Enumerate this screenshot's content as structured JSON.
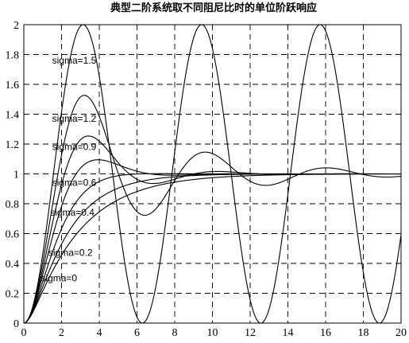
{
  "chart_data": {
    "type": "line",
    "title": "典型二阶系统取不同阻尼比时的单位阶跃响应",
    "xlabel": "",
    "ylabel": "",
    "xlim": [
      0,
      20
    ],
    "ylim": [
      0,
      2
    ],
    "grid": true,
    "x_ticks": [
      "0",
      "2",
      "4",
      "6",
      "8",
      "10",
      "12",
      "14",
      "16",
      "18",
      "20"
    ],
    "y_ticks": [
      "0",
      "0.2",
      "0.4",
      "0.6",
      "0.8",
      "1",
      "1.2",
      "1.4",
      "1.6",
      "1.8",
      "2"
    ],
    "system": {
      "natural_frequency": 1,
      "response": "unit step"
    },
    "series": [
      {
        "name": "sigma=0",
        "zeta": 0,
        "label_x": 0.9,
        "label_y": 0.28
      },
      {
        "name": "sigma=0.2",
        "zeta": 0.2,
        "label_x": 1.3,
        "label_y": 0.45
      },
      {
        "name": "sigma=0.4",
        "zeta": 0.4,
        "label_x": 1.4,
        "label_y": 0.72
      },
      {
        "name": "sigma=0.6",
        "zeta": 0.6,
        "label_x": 1.5,
        "label_y": 0.92
      },
      {
        "name": "sigma=0.9",
        "zeta": 0.9,
        "label_x": 1.5,
        "label_y": 1.16
      },
      {
        "name": "sigma=1.2",
        "zeta": 1.2,
        "label_x": 1.5,
        "label_y": 1.35
      },
      {
        "name": "sigma=1.5",
        "zeta": 1.5,
        "label_x": 1.5,
        "label_y": 1.74
      }
    ]
  }
}
